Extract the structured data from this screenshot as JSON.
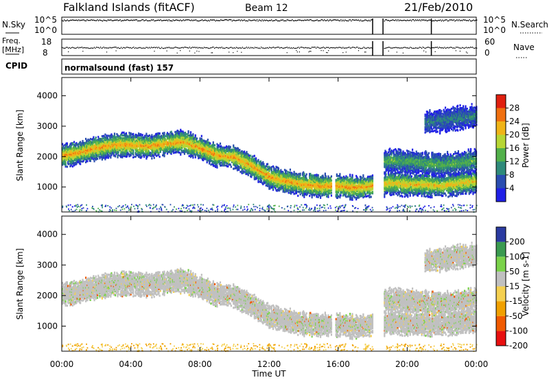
{
  "header": {
    "station": "Falkland Islands (fitACF)",
    "beam": "Beam 12",
    "date": "21/Feb/2010"
  },
  "summary_panels": {
    "nsky_label": "N.Sky",
    "nsky_top": "10^5",
    "nsky_bottom": "10^0",
    "nsearch_label": "N.Search",
    "nsearch_top": "10^5",
    "nsearch_bottom": "10^0",
    "freq_label_1": "Freq.",
    "freq_label_2": "[MHz]",
    "freq_top": "18",
    "freq_bottom": "8",
    "nave_label": "Nave",
    "nave_top": "60",
    "nave_bottom": "0",
    "cpid_label": "CPID",
    "cpid_text": "normalsound (fast) 157"
  },
  "x_axis": {
    "label": "Time UT",
    "ticks": [
      "00:00",
      "04:00",
      "08:00",
      "12:00",
      "16:00",
      "20:00",
      "00:00"
    ],
    "range_hours": [
      0,
      24
    ]
  },
  "colors": {
    "power": [
      "#2020e6",
      "#2a4db0",
      "#2f8a7a",
      "#52b04a",
      "#b7d634",
      "#f0b418",
      "#f07010",
      "#e02010"
    ],
    "velocity": [
      "#e81010",
      "#f05a00",
      "#f0a000",
      "#f5d050",
      "#c0c0c0",
      "#7ad24a",
      "#3a9a50",
      "#2a3aa0"
    ]
  },
  "chart_data": [
    {
      "type": "heatmap",
      "title": "Power",
      "ylabel": "Slant Range [km]",
      "xlabel": "Time UT",
      "xlim": [
        0,
        24
      ],
      "ylim": [
        180,
        4600
      ],
      "yticks": [
        "1000",
        "2000",
        "3000",
        "4000"
      ],
      "colorbar": {
        "label": "Power [dB]",
        "ticks": [
          "4",
          "8",
          "12",
          "16",
          "20",
          "24",
          "28"
        ]
      },
      "data_gaps_hours": [
        [
          15.6,
          15.8
        ],
        [
          18.0,
          18.6
        ]
      ],
      "echo_bands": [
        {
          "x": [
            0,
            1,
            2,
            3,
            4,
            5,
            6,
            7,
            8,
            9,
            10,
            11,
            12,
            13,
            14,
            15,
            16,
            17,
            18
          ],
          "y": [
            2050,
            2150,
            2300,
            2400,
            2400,
            2350,
            2450,
            2500,
            2300,
            2050,
            2000,
            1700,
            1350,
            1200,
            1100,
            1050,
            1050,
            1000,
            1050
          ],
          "power_db": 24
        },
        {
          "x": [
            18.6,
            19,
            20,
            21,
            22,
            23,
            24
          ],
          "y": [
            1100,
            1150,
            1100,
            1100,
            1050,
            1150,
            1200
          ],
          "power_db": 22
        },
        {
          "x": [
            18.6,
            19,
            20,
            21,
            22,
            23,
            24
          ],
          "y": [
            1850,
            1900,
            1850,
            1800,
            1750,
            1800,
            1900
          ],
          "power_db": 14
        },
        {
          "x": [
            21,
            22,
            23,
            24
          ],
          "y": [
            3150,
            3200,
            3300,
            3350
          ],
          "power_db": 10
        }
      ]
    },
    {
      "type": "heatmap",
      "title": "Velocity",
      "ylabel": "Slant Range [km]",
      "xlabel": "Time UT",
      "xlim": [
        0,
        24
      ],
      "ylim": [
        180,
        4600
      ],
      "yticks": [
        "1000",
        "2000",
        "3000",
        "4000"
      ],
      "colorbar": {
        "label": "Velocity [m s-1]",
        "ticks": [
          "200",
          "100",
          "50",
          "15",
          "-15",
          "-50",
          "-100",
          "-200"
        ]
      },
      "data_gaps_hours": [
        [
          15.6,
          15.8
        ],
        [
          18.0,
          18.6
        ]
      ],
      "dominant_value_band": "-15 to 15"
    }
  ]
}
